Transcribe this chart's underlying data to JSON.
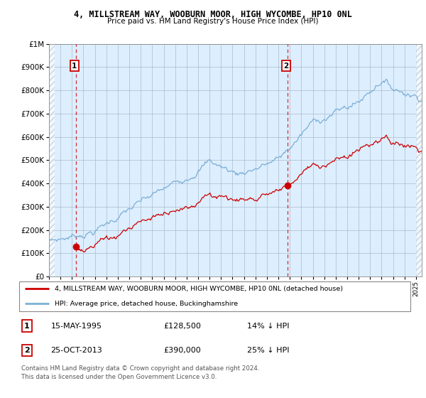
{
  "title": "4, MILLSTREAM WAY, WOOBURN MOOR, HIGH WYCOMBE, HP10 0NL",
  "subtitle": "Price paid vs. HM Land Registry's House Price Index (HPI)",
  "legend_line1": "4, MILLSTREAM WAY, WOOBURN MOOR, HIGH WYCOMBE, HP10 0NL (detached house)",
  "legend_line2": "HPI: Average price, detached house, Buckinghamshire",
  "footnote": "Contains HM Land Registry data © Crown copyright and database right 2024.\nThis data is licensed under the Open Government Licence v3.0.",
  "point1_date": "15-MAY-1995",
  "point1_price": "£128,500",
  "point1_hpi": "14% ↓ HPI",
  "point2_date": "25-OCT-2013",
  "point2_price": "£390,000",
  "point2_hpi": "25% ↓ HPI",
  "ylim": [
    0,
    1000000
  ],
  "yticks": [
    0,
    100000,
    200000,
    300000,
    400000,
    500000,
    600000,
    700000,
    800000,
    900000,
    1000000
  ],
  "ytick_labels": [
    "£0",
    "£100K",
    "£200K",
    "£300K",
    "£400K",
    "£500K",
    "£600K",
    "£700K",
    "£800K",
    "£900K",
    "£1M"
  ],
  "hpi_color": "#7bafd4",
  "sale_color": "#cc0000",
  "bg_color": "#ddeeff",
  "hatch_color": "#bbccdd",
  "grid_color": "#aabbcc",
  "point1_x": 1995.37,
  "point1_y": 128500,
  "point2_x": 2013.81,
  "point2_y": 390000,
  "xlim_left": 1993.0,
  "xlim_right": 2025.5
}
